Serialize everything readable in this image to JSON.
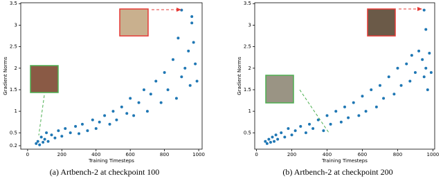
{
  "chart_data": [
    {
      "type": "scatter",
      "x_label": "Training Timesteps",
      "y_label": "Gradient Norms",
      "caption": "(a) Artbench-2 at checkpoint 100",
      "color": "#1f77b4",
      "x": [
        50,
        60,
        70,
        80,
        90,
        100,
        110,
        120,
        140,
        160,
        180,
        200,
        220,
        250,
        280,
        300,
        320,
        350,
        380,
        400,
        420,
        450,
        480,
        500,
        520,
        550,
        580,
        600,
        620,
        650,
        680,
        700,
        720,
        750,
        780,
        800,
        820,
        850,
        870,
        880,
        900,
        920,
        940,
        950,
        960,
        970,
        980,
        990,
        900,
        960
      ],
      "values": [
        0.25,
        0.3,
        0.22,
        0.4,
        0.28,
        0.35,
        0.5,
        0.3,
        0.45,
        0.38,
        0.55,
        0.42,
        0.6,
        0.5,
        0.65,
        0.48,
        0.7,
        0.55,
        0.8,
        0.6,
        0.75,
        0.9,
        0.7,
        1.0,
        0.8,
        1.1,
        0.95,
        1.3,
        0.9,
        1.2,
        1.5,
        1.0,
        1.4,
        1.7,
        1.2,
        1.9,
        1.5,
        2.2,
        1.3,
        2.7,
        1.8,
        2.0,
        2.4,
        1.6,
        3.05,
        2.6,
        2.1,
        1.7,
        3.35,
        3.2
      ],
      "xlim": [
        -40,
        1020
      ],
      "ylim": [
        0.12,
        3.52
      ],
      "xticks": [
        0,
        200,
        400,
        600,
        800,
        1000
      ],
      "yticks": [
        0.2,
        0.5,
        1.0,
        1.5,
        2.0,
        2.5,
        3.0,
        3.5
      ]
    },
    {
      "type": "scatter",
      "x_label": "Training Timesteps",
      "y_label": "Gradient Norms",
      "caption": "(b) Artbench-2 at checkpoint 200",
      "color": "#1f77b4",
      "x": [
        50,
        60,
        70,
        80,
        90,
        100,
        110,
        120,
        140,
        160,
        180,
        200,
        220,
        250,
        280,
        300,
        320,
        350,
        380,
        400,
        420,
        450,
        480,
        500,
        520,
        550,
        580,
        600,
        620,
        650,
        680,
        700,
        720,
        750,
        780,
        800,
        820,
        850,
        870,
        880,
        900,
        920,
        940,
        950,
        960,
        970,
        980,
        990,
        950,
        960
      ],
      "values": [
        0.3,
        0.25,
        0.35,
        0.28,
        0.4,
        0.3,
        0.45,
        0.35,
        0.5,
        0.4,
        0.6,
        0.45,
        0.55,
        0.65,
        0.5,
        0.7,
        0.6,
        0.8,
        0.55,
        0.9,
        0.7,
        1.0,
        0.75,
        1.1,
        0.85,
        1.2,
        0.9,
        1.35,
        1.0,
        1.5,
        1.1,
        1.6,
        1.3,
        1.8,
        1.4,
        2.0,
        1.6,
        2.1,
        1.7,
        2.3,
        1.9,
        2.4,
        2.2,
        1.8,
        2.0,
        1.5,
        2.35,
        1.9,
        3.35,
        2.9
      ],
      "xlim": [
        -10,
        1010
      ],
      "ylim": [
        0.12,
        3.52
      ],
      "xticks": [
        0,
        200,
        400,
        600,
        800,
        1000
      ],
      "yticks": [
        0.5,
        1.0,
        1.5,
        2.0,
        2.5,
        3.0,
        3.5
      ]
    }
  ]
}
